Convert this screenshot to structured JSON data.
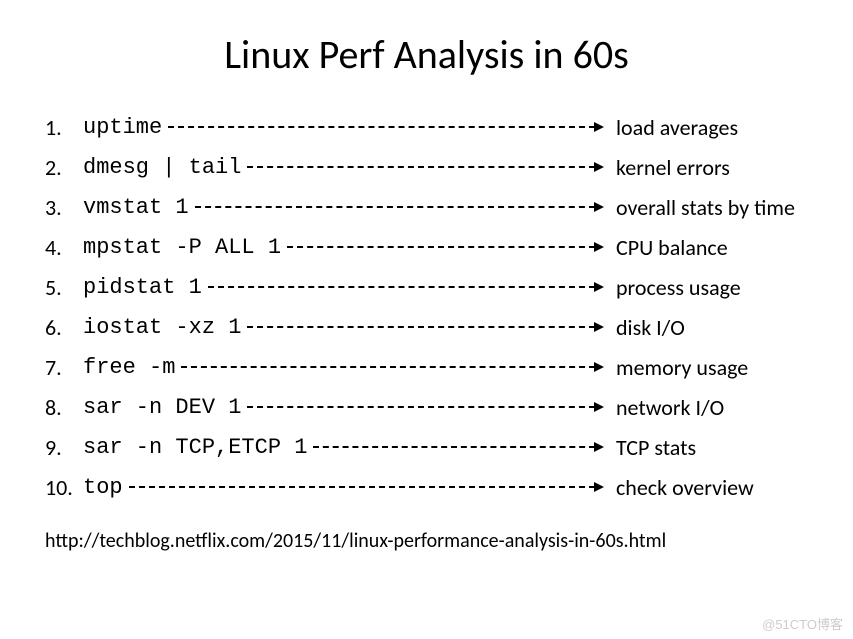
{
  "title": "Linux Perf Analysis in 60s",
  "rows": [
    {
      "num": "1.",
      "cmd": "uptime",
      "desc": "load averages"
    },
    {
      "num": "2.",
      "cmd": "dmesg | tail",
      "desc": "kernel errors"
    },
    {
      "num": "3.",
      "cmd": "vmstat 1",
      "desc": "overall stats by time"
    },
    {
      "num": "4.",
      "cmd": "mpstat -P ALL 1",
      "desc": "CPU balance"
    },
    {
      "num": "5.",
      "cmd": "pidstat 1",
      "desc": "process usage"
    },
    {
      "num": "6.",
      "cmd": "iostat -xz 1",
      "desc": "disk I/O"
    },
    {
      "num": "7.",
      "cmd": "free -m",
      "desc": "memory usage"
    },
    {
      "num": "8.",
      "cmd": "sar -n DEV 1",
      "desc": "network I/O"
    },
    {
      "num": "9.",
      "cmd": "sar -n TCP,ETCP 1",
      "desc": "TCP stats"
    },
    {
      "num": "10.",
      "cmd": "top",
      "desc": "check overview"
    }
  ],
  "footer": "http://techblog.netflix.com/2015/11/linux-performance-analysis-in-60s.html",
  "watermark": "@51CTO博客",
  "colors": {
    "text": "#000000",
    "background": "#ffffff",
    "watermark": "#cccccc"
  },
  "fonts": {
    "title_size": 40,
    "body_size": 22,
    "footer_size": 20,
    "cmd_family": "Courier New",
    "text_family": "Calibri"
  }
}
